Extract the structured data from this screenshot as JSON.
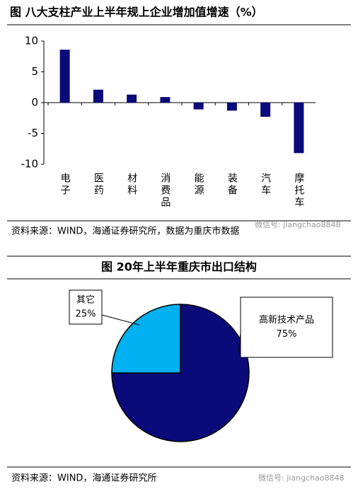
{
  "chart_data": [
    {
      "type": "bar",
      "title": "图  八大支柱产业上半年规上企业增加值增速（%）",
      "categories": [
        "电子",
        "医药",
        "材料",
        "消费品",
        "能源",
        "装备",
        "汽车",
        "摩托车"
      ],
      "values": [
        8.6,
        2.1,
        1.3,
        0.9,
        -1.1,
        -1.3,
        -2.3,
        -8.2
      ],
      "color": "#0a0a7a",
      "ylim": [
        -10,
        10
      ],
      "yticks": [
        -10,
        -5,
        0,
        5,
        10
      ],
      "source": "资料来源：WIND，海通证券研究所，数据为重庆市数据",
      "watermark": "微信号: jiangchao8848"
    },
    {
      "type": "pie",
      "title": "图  20年上半年重庆市出口结构",
      "categories": [
        "高新技术产品",
        "其它"
      ],
      "values": [
        75,
        25
      ],
      "value_labels": [
        "75%",
        "25%"
      ],
      "colors": [
        "#0a0a7a",
        "#00b0f0"
      ],
      "source": "资料来源：WIND，海通证券研究所",
      "watermark": "微信号: jiangchao8848"
    }
  ]
}
